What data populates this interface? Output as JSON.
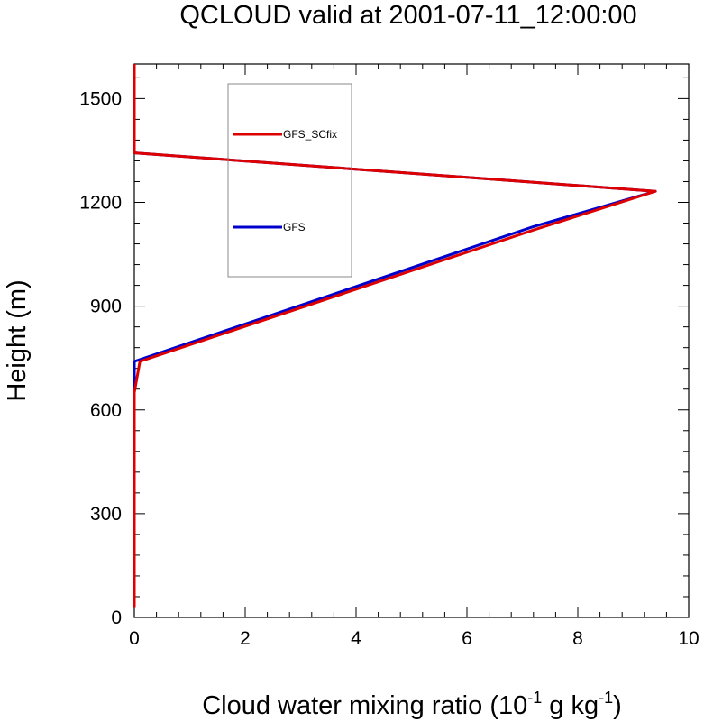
{
  "chart_data": {
    "type": "line",
    "title": "QCLOUD valid at 2001-07-11_12:00:00",
    "xlabel": {
      "text": "Cloud water mixing ratio (10",
      "exp1": "-1",
      "mid": " g kg",
      "exp2": "-1",
      "end": ")"
    },
    "ylabel": "Height (m)",
    "xlim": [
      0,
      10
    ],
    "ylim": [
      0,
      1600
    ],
    "x_ticks": [
      0,
      2,
      4,
      6,
      8,
      10
    ],
    "x_tick_labels": [
      "0",
      "2",
      "4",
      "6",
      "8",
      "10"
    ],
    "y_ticks": [
      0,
      300,
      600,
      900,
      1200,
      1500
    ],
    "y_tick_labels": [
      "0",
      "300",
      "600",
      "900",
      "1200",
      "1500"
    ],
    "x_minor_step": 0.4,
    "y_minor_step": 60,
    "legend_position": "top-left",
    "series": [
      {
        "name": "GFS",
        "color": "#0000cc",
        "points": [
          [
            0,
            30
          ],
          [
            0,
            650
          ],
          [
            0,
            740
          ],
          [
            7.2,
            1130
          ],
          [
            9.4,
            1232
          ],
          [
            0,
            1343
          ],
          [
            0,
            1600
          ]
        ]
      },
      {
        "name": "GFS_SCfix",
        "color": "#dd0000",
        "points": [
          [
            0,
            30
          ],
          [
            0,
            650
          ],
          [
            0.1,
            740
          ],
          [
            7.2,
            1120
          ],
          [
            9.4,
            1232
          ],
          [
            0,
            1343
          ],
          [
            0,
            1600
          ]
        ]
      }
    ],
    "legend": [
      {
        "name": "GFS_SCfix",
        "color": "#dd0000"
      },
      {
        "name": "GFS",
        "color": "#0000cc"
      }
    ]
  }
}
